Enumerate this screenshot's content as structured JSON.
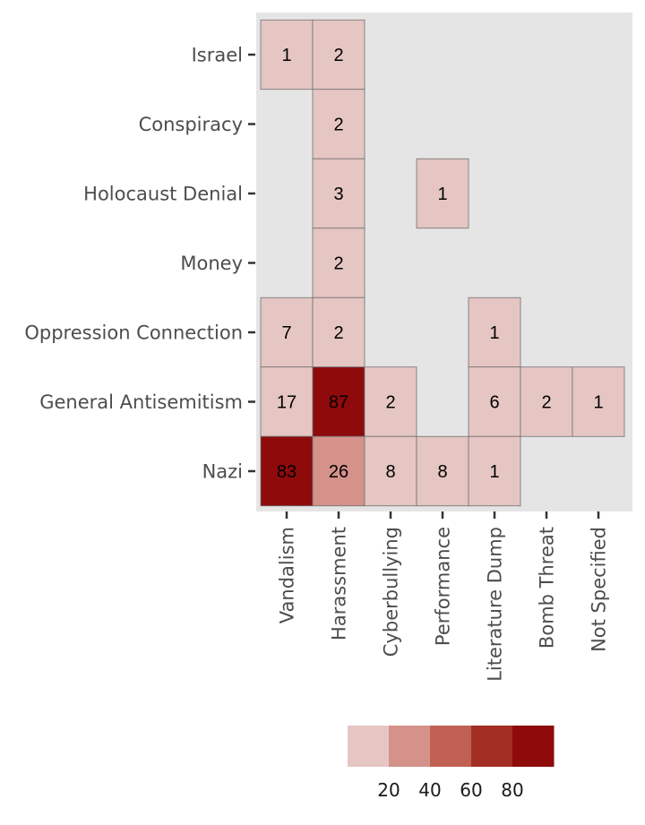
{
  "chart_data": {
    "type": "heatmap",
    "title": "",
    "xlabel": "",
    "ylabel": "",
    "x_categories": [
      "Vandalism",
      "Harassment",
      "Cyberbullying",
      "Performance",
      "Literature Dump",
      "Bomb Threat",
      "Not Specified"
    ],
    "y_categories": [
      "Israel",
      "Conspiracy",
      "Holocaust Denial",
      "Money",
      "Oppression Connection",
      "General Antisemitism",
      "Nazi"
    ],
    "cells": [
      {
        "x": "Vandalism",
        "y": "Israel",
        "value": 1
      },
      {
        "x": "Harassment",
        "y": "Israel",
        "value": 2
      },
      {
        "x": "Harassment",
        "y": "Conspiracy",
        "value": 2
      },
      {
        "x": "Harassment",
        "y": "Holocaust Denial",
        "value": 3
      },
      {
        "x": "Performance",
        "y": "Holocaust Denial",
        "value": 1
      },
      {
        "x": "Harassment",
        "y": "Money",
        "value": 2
      },
      {
        "x": "Vandalism",
        "y": "Oppression Connection",
        "value": 7
      },
      {
        "x": "Harassment",
        "y": "Oppression Connection",
        "value": 2
      },
      {
        "x": "Literature Dump",
        "y": "Oppression Connection",
        "value": 1
      },
      {
        "x": "Vandalism",
        "y": "General Antisemitism",
        "value": 17
      },
      {
        "x": "Harassment",
        "y": "General Antisemitism",
        "value": 87
      },
      {
        "x": "Cyberbullying",
        "y": "General Antisemitism",
        "value": 2
      },
      {
        "x": "Literature Dump",
        "y": "General Antisemitism",
        "value": 6
      },
      {
        "x": "Bomb Threat",
        "y": "General Antisemitism",
        "value": 2
      },
      {
        "x": "Not Specified",
        "y": "General Antisemitism",
        "value": 1
      },
      {
        "x": "Vandalism",
        "y": "Nazi",
        "value": 83
      },
      {
        "x": "Harassment",
        "y": "Nazi",
        "value": 26
      },
      {
        "x": "Cyberbullying",
        "y": "Nazi",
        "value": 8
      },
      {
        "x": "Performance",
        "y": "Nazi",
        "value": 8
      },
      {
        "x": "Literature Dump",
        "y": "Nazi",
        "value": 1
      }
    ],
    "legend": {
      "placement": "bottom",
      "type": "binned",
      "ticks": [
        20,
        40,
        60,
        80
      ],
      "bins": [
        {
          "range": [
            0,
            20
          ],
          "color": "#e5c6c3"
        },
        {
          "range": [
            20,
            40
          ],
          "color": "#d4928a"
        },
        {
          "range": [
            40,
            60
          ],
          "color": "#c06052"
        },
        {
          "range": [
            60,
            80
          ],
          "color": "#a32e24"
        },
        {
          "range": [
            80,
            100
          ],
          "color": "#8e0a0b"
        }
      ]
    },
    "panel_background": "#e5e5e5",
    "grid": false
  }
}
